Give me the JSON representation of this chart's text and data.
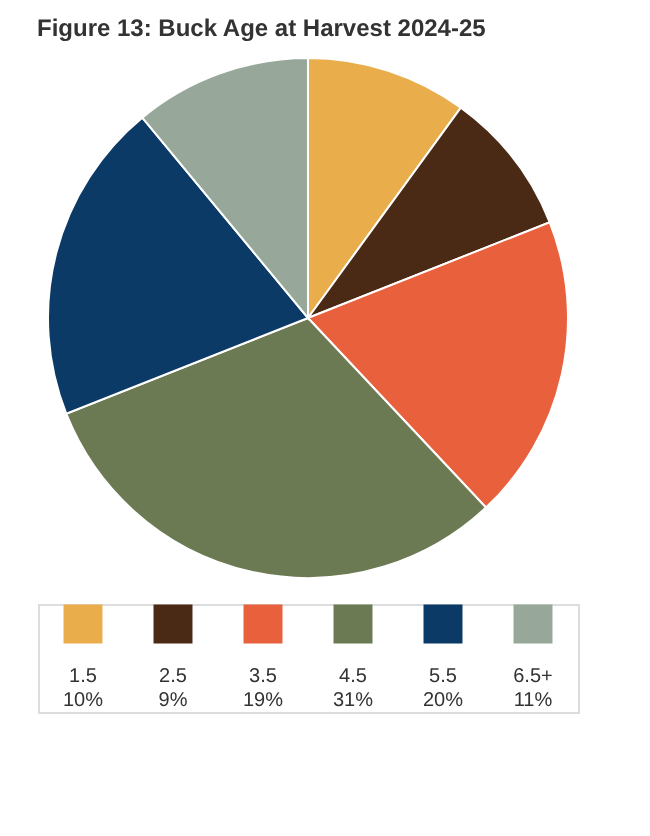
{
  "chart_data": {
    "type": "pie",
    "title": "Figure 13: Buck Age at Harvest 2024-25",
    "categories": [
      "1.5",
      "2.5",
      "3.5",
      "4.5",
      "5.5",
      "6.5+"
    ],
    "values": [
      10,
      9,
      19,
      31,
      20,
      11
    ],
    "value_labels": [
      "10%",
      "9%",
      "19%",
      "31%",
      "20%",
      "11%"
    ],
    "colors": [
      "#e9ae4b",
      "#4b2a15",
      "#e8603c",
      "#6c7a53",
      "#0b3a67",
      "#97a89b"
    ],
    "legend": "bottom"
  }
}
